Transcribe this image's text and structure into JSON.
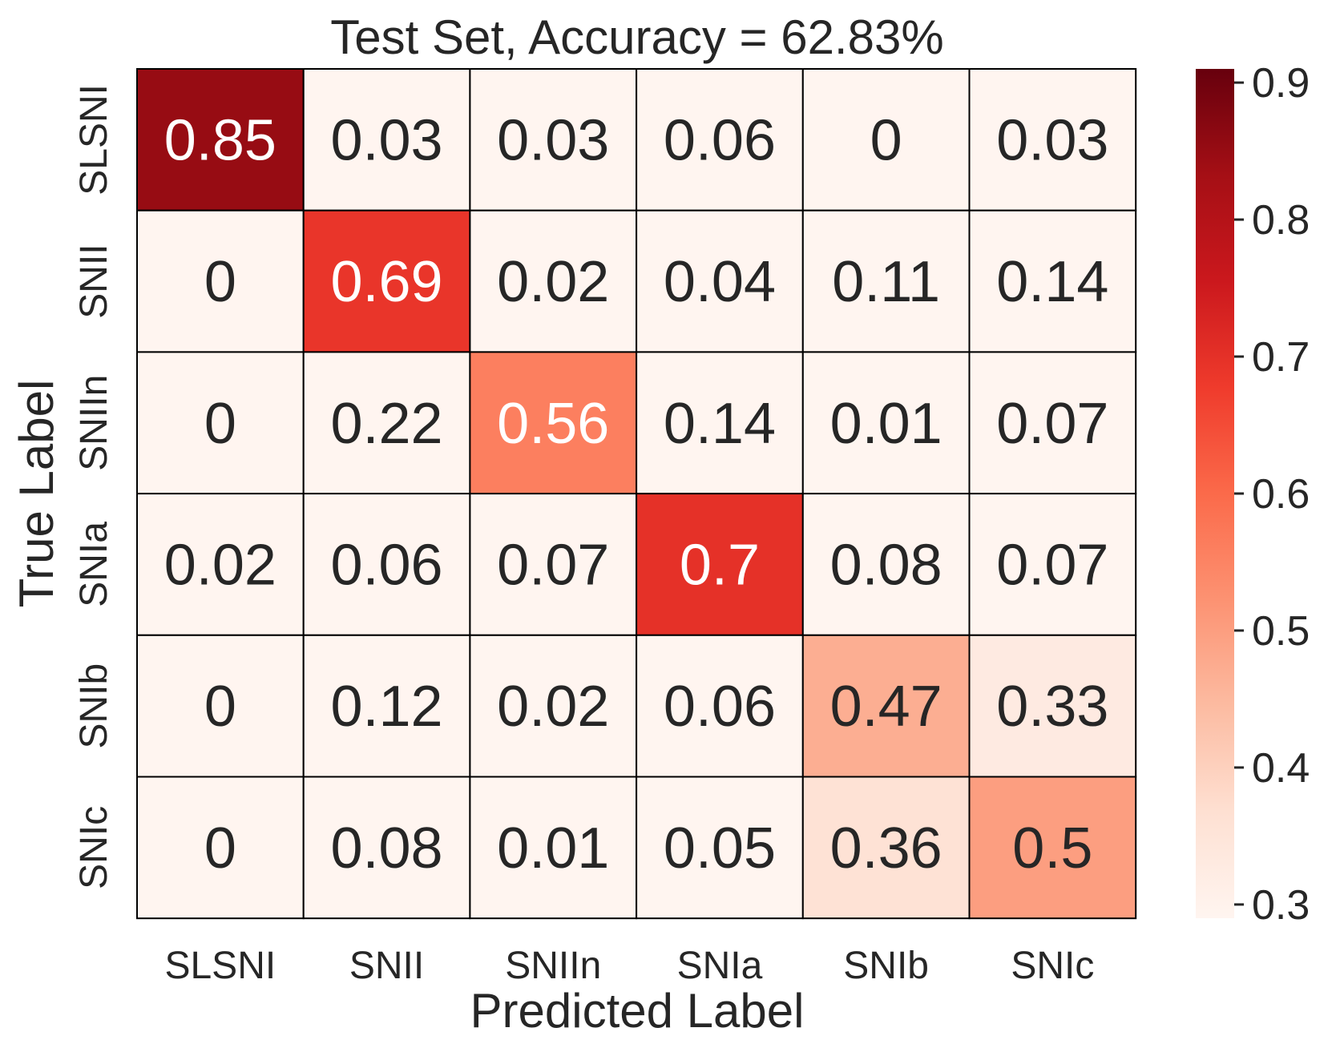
{
  "chart_data": {
    "type": "heatmap",
    "title": "Test Set, Accuracy = 62.83%",
    "xlabel": "Predicted Label",
    "ylabel": "True Label",
    "x_categories": [
      "SLSNI",
      "SNII",
      "SNIIn",
      "SNIa",
      "SNIb",
      "SNIc"
    ],
    "y_categories": [
      "SLSNI",
      "SNII",
      "SNIIn",
      "SNIa",
      "SNIb",
      "SNIc"
    ],
    "values": [
      [
        0.85,
        0.03,
        0.03,
        0.06,
        0,
        0.03
      ],
      [
        0,
        0.69,
        0.02,
        0.04,
        0.11,
        0.14
      ],
      [
        0,
        0.22,
        0.56,
        0.14,
        0.01,
        0.07
      ],
      [
        0.02,
        0.06,
        0.07,
        0.7,
        0.08,
        0.07
      ],
      [
        0,
        0.12,
        0.02,
        0.06,
        0.47,
        0.33
      ],
      [
        0,
        0.08,
        0.01,
        0.05,
        0.36,
        0.5
      ]
    ],
    "colormap": "Reds",
    "color_range": [
      0.29,
      0.91
    ],
    "colorbar_ticks": [
      "0.3",
      "0.4",
      "0.5",
      "0.6",
      "0.7",
      "0.8",
      "0.9"
    ],
    "colorbar_tick_values": [
      0.3,
      0.4,
      0.5,
      0.6,
      0.7,
      0.8,
      0.9
    ],
    "grid": true,
    "cell_border_color": "#000000",
    "text_color_dark": "#262626",
    "text_color_light": "#ffffff"
  }
}
